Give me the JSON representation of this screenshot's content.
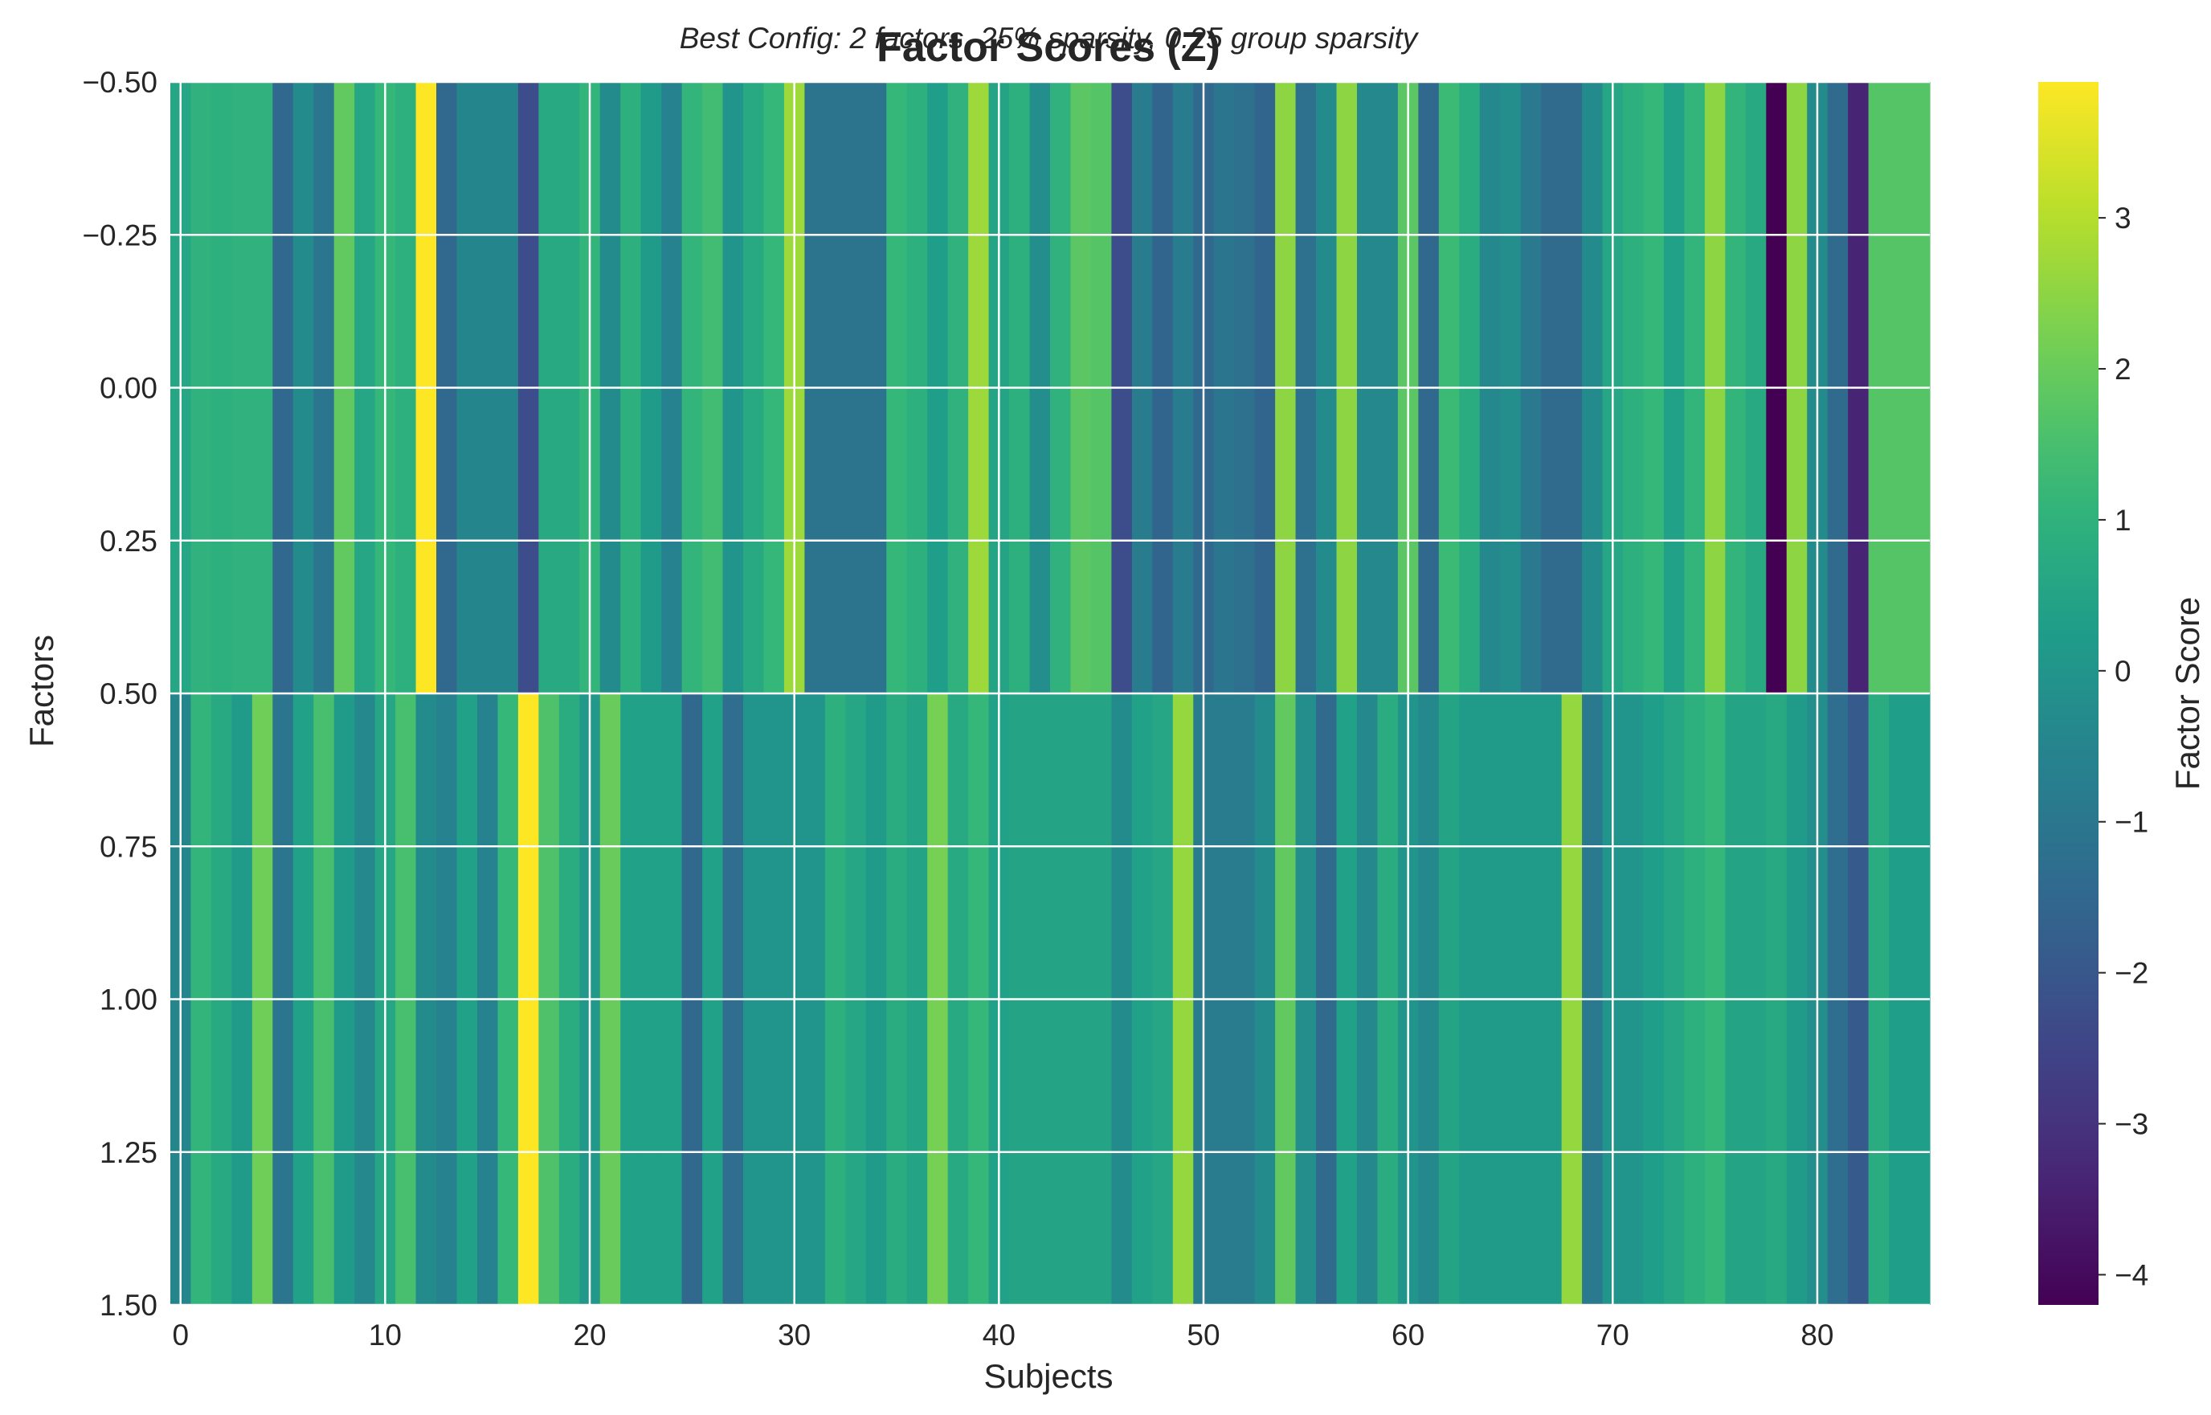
{
  "chart_data": {
    "type": "heatmap",
    "title": "Factor Scores (Z)",
    "subtitle": "Best Config: 2 factors, 25% sparsity, 0.25 group sparsity",
    "xlabel": "Subjects",
    "ylabel": "Factors",
    "colorbar_label": "Factor Score",
    "colormap": "viridis",
    "grid": true,
    "n_subjects": 86,
    "n_factors": 2,
    "xlim": [
      -0.5,
      85.5
    ],
    "ylim": [
      1.5,
      -0.5
    ],
    "clim": [
      -4.2,
      3.9
    ],
    "x_ticks": [
      0,
      10,
      20,
      30,
      40,
      50,
      60,
      70,
      80
    ],
    "x_tick_labels": [
      "0",
      "10",
      "20",
      "30",
      "40",
      "50",
      "60",
      "70",
      "80"
    ],
    "y_ticks": [
      -0.5,
      -0.25,
      0,
      0.25,
      0.5,
      0.75,
      1,
      1.25,
      1.5
    ],
    "y_tick_labels": [
      "−0.50",
      "−0.25",
      "0.00",
      "0.25",
      "0.50",
      "0.75",
      "1.00",
      "1.25",
      "1.50"
    ],
    "colorbar_ticks": [
      -4,
      -3,
      -2,
      -1,
      0,
      1,
      2,
      3
    ],
    "colorbar_tick_labels": [
      "−4",
      "−3",
      "−2",
      "−1",
      "0",
      "1",
      "2",
      "3"
    ],
    "values": [
      [
        0.6,
        1.0,
        0.9,
        1.0,
        1.0,
        -1.5,
        -0.3,
        -1.0,
        1.9,
        0.6,
        1.2,
        0.9,
        3.9,
        -1.5,
        -0.5,
        -0.5,
        -0.5,
        -2.3,
        0.7,
        0.7,
        1.1,
        -0.3,
        0.9,
        0.2,
        -0.6,
        1.1,
        1.4,
        0.0,
        0.7,
        1.2,
        2.7,
        -1.1,
        -1.1,
        -1.1,
        -1.1,
        1.2,
        0.9,
        0.3,
        1.0,
        2.7,
        0.5,
        0.9,
        -0.2,
        1.0,
        1.8,
        1.7,
        -2.3,
        -0.8,
        -1.6,
        -0.8,
        -1.5,
        -1.0,
        -1.2,
        -1.6,
        2.5,
        -1.2,
        -0.3,
        2.5,
        -0.4,
        -0.4,
        1.8,
        -1.5,
        1.3,
        0.8,
        -0.4,
        -0.2,
        -0.9,
        -1.4,
        -1.4,
        -0.3,
        0.6,
        0.9,
        1.2,
        0.4,
        1.1,
        2.5,
        1.1,
        0.7,
        -4.2,
        2.5,
        -0.3,
        -1.4,
        -3.4,
        1.7,
        1.7,
        1.7
      ],
      [
        -0.5,
        1.1,
        0.7,
        0.2,
        2.1,
        -1.0,
        0.4,
        1.5,
        0.2,
        -0.4,
        0.6,
        1.5,
        -0.3,
        -0.6,
        0.4,
        -0.6,
        1.2,
        3.9,
        1.6,
        0.8,
        0.1,
        2.0,
        0.4,
        0.4,
        0.4,
        -1.5,
        0.4,
        -1.3,
        0.0,
        0.0,
        0.0,
        0.0,
        0.9,
        0.6,
        0.2,
        0.8,
        0.5,
        2.2,
        0.7,
        1.2,
        0.4,
        0.5,
        0.5,
        0.5,
        0.5,
        0.5,
        -0.3,
        0.4,
        0.6,
        2.6,
        -0.8,
        -0.8,
        -0.8,
        -0.3,
        1.9,
        -0.2,
        -1.4,
        0.4,
        -0.4,
        0.8,
        0.0,
        -0.4,
        0.5,
        0.2,
        0.2,
        0.2,
        0.2,
        0.2,
        2.6,
        -0.9,
        0.0,
        0.0,
        0.3,
        0.6,
        0.9,
        1.2,
        0.5,
        0.5,
        0.7,
        0.2,
        -0.2,
        -1.3,
        -1.9,
        0.8,
        0.3,
        0.3
      ]
    ]
  }
}
